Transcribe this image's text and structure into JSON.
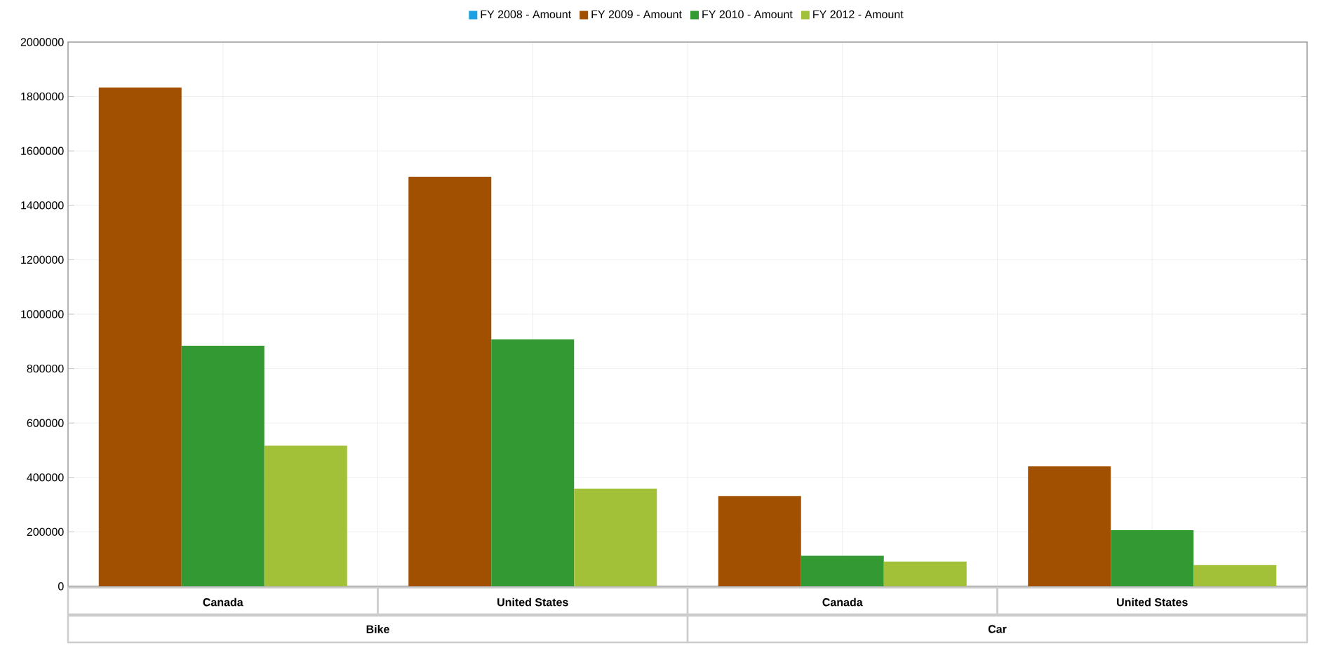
{
  "chart_data": {
    "type": "bar",
    "categories": [
      "Canada",
      "United States",
      "Canada",
      "United States"
    ],
    "series": [
      {
        "name": "FY 2008 - Amount",
        "color": "#1ba1e2",
        "values": [
          null,
          null,
          null,
          null
        ]
      },
      {
        "name": "FY 2009 - Amount",
        "color": "#a05000",
        "values": [
          1833000,
          1505000,
          332000,
          441000
        ]
      },
      {
        "name": "FY 2010 - Amount",
        "color": "#339933",
        "values": [
          884000,
          907000,
          112000,
          206000
        ]
      },
      {
        "name": "FY 2012 - Amount",
        "color": "#a2c139",
        "values": [
          517000,
          359000,
          91000,
          78000
        ]
      }
    ],
    "ylim": [
      0,
      2000000
    ],
    "yticks": [
      0,
      200000,
      400000,
      600000,
      800000,
      1000000,
      1200000,
      1400000,
      1600000,
      1800000,
      2000000
    ],
    "grid": true,
    "legend": "top",
    "annotations": [
      "Bike",
      "Car"
    ]
  }
}
